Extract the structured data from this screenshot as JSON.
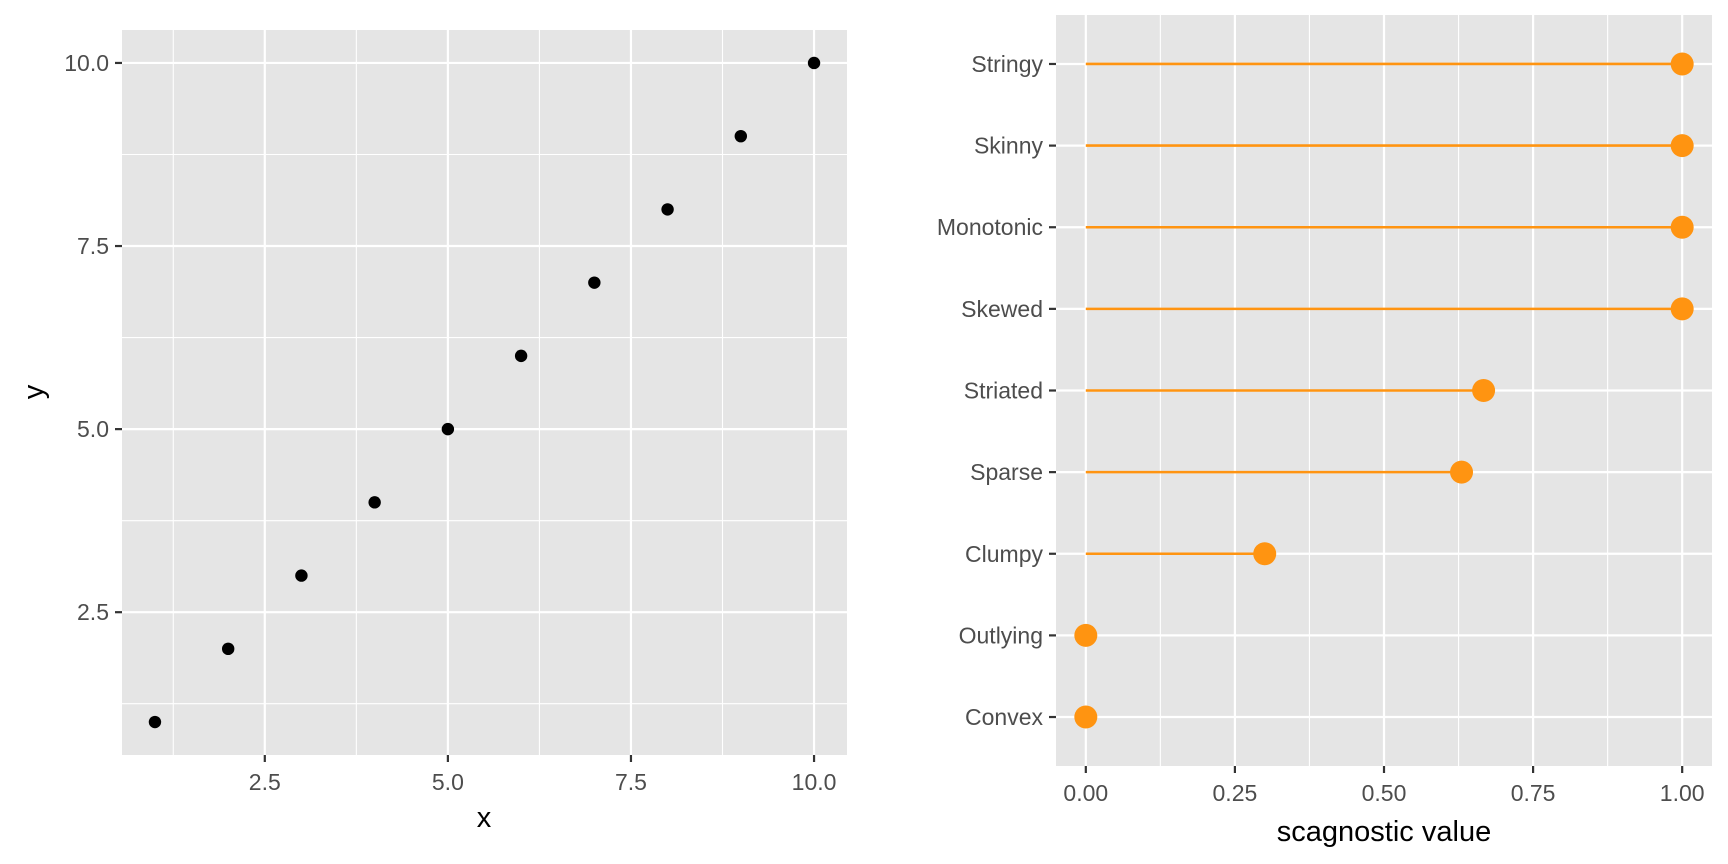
{
  "chart_data": [
    {
      "type": "scatter",
      "title": "",
      "xlabel": "x",
      "ylabel": "y",
      "xlim": [
        0.55,
        10.45
      ],
      "ylim": [
        0.55,
        10.45
      ],
      "x_ticks": [
        2.5,
        5.0,
        7.5,
        10.0
      ],
      "x_tick_labels": [
        "2.5",
        "5.0",
        "7.5",
        "10.0"
      ],
      "y_ticks": [
        2.5,
        5.0,
        7.5,
        10.0
      ],
      "y_tick_labels": [
        "2.5",
        "5.0",
        "7.5",
        "10.0"
      ],
      "grid": true,
      "point_color": "#000000",
      "points": [
        {
          "x": 1,
          "y": 1
        },
        {
          "x": 2,
          "y": 2
        },
        {
          "x": 3,
          "y": 3
        },
        {
          "x": 4,
          "y": 4
        },
        {
          "x": 5,
          "y": 5
        },
        {
          "x": 6,
          "y": 6
        },
        {
          "x": 7,
          "y": 7
        },
        {
          "x": 8,
          "y": 8
        },
        {
          "x": 9,
          "y": 9
        },
        {
          "x": 10,
          "y": 10
        }
      ]
    },
    {
      "type": "lollipop",
      "title": "",
      "xlabel": "scagnostic value",
      "ylabel": "",
      "xlim": [
        -0.05,
        1.05
      ],
      "x_ticks": [
        0,
        0.25,
        0.5,
        0.75,
        1.0
      ],
      "x_tick_labels": [
        "0.00",
        "0.25",
        "0.50",
        "0.75",
        "1.00"
      ],
      "grid": true,
      "color": "#ff9411",
      "categories": [
        "Stringy",
        "Skinny",
        "Monotonic",
        "Skewed",
        "Striated",
        "Sparse",
        "Clumpy",
        "Outlying",
        "Convex"
      ],
      "values": [
        1.0,
        1.0,
        1.0,
        1.0,
        0.667,
        0.63,
        0.3,
        0.0,
        0.0
      ]
    }
  ]
}
